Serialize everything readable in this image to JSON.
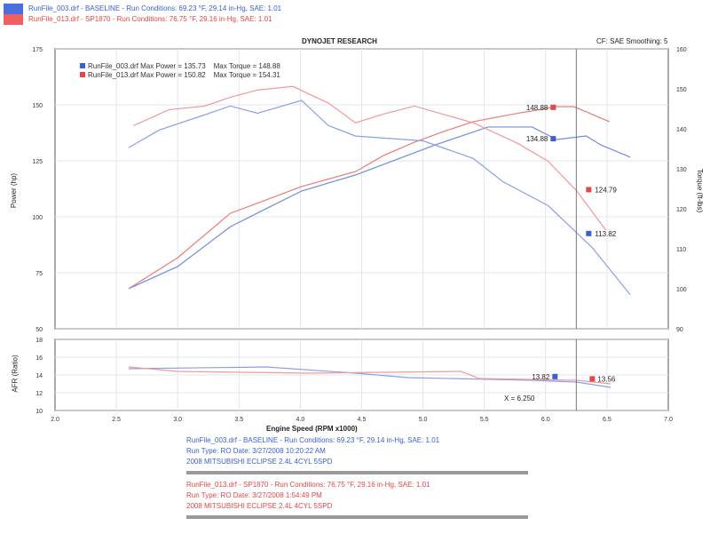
{
  "header": {
    "runs": [
      {
        "text": "RunFile_003.drf - BASELINE  -  Run Conditions: 69.23 °F, 29.14 in-Hg, SAE: 1.01",
        "color": "#3a5fd0"
      },
      {
        "text": "RunFile_013.drf - SP1870  -  Run Conditions: 76.75 °F, 29.16 in-Hg, SAE: 1.01",
        "color": "#e24848"
      }
    ],
    "title": "DYNOJET RESEARCH",
    "settings": "CF: SAE  Smoothing: 5"
  },
  "legend": [
    {
      "label": "RunFile_003.drf Max Power = 135.73",
      "torque": "Max Torque = 148.88",
      "color": "#3a5fd0"
    },
    {
      "label": "RunFile_013.drf Max Power = 150.82",
      "torque": "Max Torque = 154.31",
      "color": "#e24848"
    }
  ],
  "chart_data": [
    {
      "type": "line",
      "xlabel": "Engine Speed (RPM x1000)",
      "ylabel": "Power (hp)",
      "y2label": "Torque (ft-lbs)",
      "xlim": [
        2.0,
        7.0
      ],
      "ylim": [
        50,
        175
      ],
      "y2lim": [
        90,
        160
      ],
      "xticks": [
        "2.0",
        "2.5",
        "3.0",
        "3.5",
        "4.0",
        "4.5",
        "5.0",
        "5.5",
        "6.0",
        "6.5",
        "7.0"
      ],
      "yticks": [
        "50",
        "75",
        "100",
        "125",
        "150",
        "175"
      ],
      "y2ticks": [
        "90",
        "100",
        "110",
        "120",
        "130",
        "140",
        "150",
        "160"
      ],
      "grid": true,
      "cursor_rpm": 6.25,
      "series": [
        {
          "run": "RunFile_003.drf",
          "kind": "power",
          "axis": "left",
          "color": "#6f8ce0",
          "x": [
            2.6,
            3.0,
            3.43,
            3.72,
            4.01,
            4.45,
            5.1,
            5.53,
            5.89,
            6.09,
            6.33,
            6.45,
            6.69
          ],
          "y": [
            67.9,
            77.8,
            95.6,
            103.6,
            111.5,
            118.7,
            132.1,
            140.1,
            140.1,
            134.5,
            136.1,
            132.1,
            126.6
          ]
        },
        {
          "run": "RunFile_013.drf",
          "kind": "power",
          "axis": "left",
          "color": "#ec7a7a",
          "x": [
            2.6,
            3.0,
            3.43,
            3.72,
            4.01,
            4.45,
            4.68,
            4.93,
            5.17,
            5.41,
            5.75,
            6.09,
            6.23,
            6.52
          ],
          "y": [
            67.9,
            81.7,
            101.6,
            107.5,
            113.5,
            120.2,
            127.4,
            133.3,
            138.1,
            142.5,
            146.0,
            149.2,
            149.2,
            142.5
          ]
        },
        {
          "run": "RunFile_003.drf",
          "kind": "torque",
          "axis": "right",
          "color": "#8aa0e6",
          "x": [
            2.6,
            2.85,
            3.22,
            3.43,
            3.65,
            4.01,
            4.23,
            4.45,
            5.0,
            5.41,
            5.65,
            6.02,
            6.25,
            6.38,
            6.69
          ],
          "y": [
            135.3,
            139.7,
            143.5,
            145.7,
            143.9,
            147.1,
            140.8,
            138.2,
            137.0,
            132.6,
            126.8,
            120.8,
            114.1,
            110.3,
            98.5
          ]
        },
        {
          "run": "RunFile_013.drf",
          "kind": "torque",
          "axis": "right",
          "color": "#f09a9a",
          "x": [
            2.64,
            2.93,
            3.22,
            3.43,
            3.65,
            3.94,
            4.23,
            4.45,
            4.68,
            4.93,
            5.41,
            5.77,
            6.02,
            6.25,
            6.49
          ],
          "y": [
            140.8,
            144.8,
            145.7,
            147.9,
            149.7,
            150.6,
            146.4,
            141.5,
            143.7,
            145.7,
            141.5,
            136.4,
            131.9,
            124.6,
            114.7
          ]
        }
      ],
      "markers": [
        {
          "label": "148.88",
          "value": 148.88,
          "axis": "left",
          "color": "#e24848"
        },
        {
          "label": "134.88",
          "value": 134.88,
          "axis": "left",
          "color": "#3a5fd0"
        },
        {
          "label": "124.79",
          "value": 124.79,
          "axis": "right",
          "color": "#e24848"
        },
        {
          "label": "113.82",
          "value": 113.82,
          "axis": "right",
          "color": "#3a5fd0"
        }
      ]
    },
    {
      "type": "line",
      "ylabel": "AFR (Ratio)",
      "xlim": [
        2.0,
        7.0
      ],
      "ylim": [
        10,
        18
      ],
      "yticks": [
        "10",
        "12",
        "14",
        "16",
        "18"
      ],
      "series": [
        {
          "run": "RunFile_003.drf",
          "color": "#8aa0e6",
          "x": [
            2.6,
            3.72,
            4.45,
            4.88,
            5.89,
            6.25,
            6.53
          ],
          "y": [
            14.7,
            14.9,
            14.2,
            13.7,
            13.4,
            13.2,
            12.6
          ]
        },
        {
          "run": "RunFile_013.drf",
          "color": "#f09a9a",
          "x": [
            2.6,
            3.0,
            4.08,
            5.31,
            5.46,
            6.25,
            6.53
          ],
          "y": [
            14.9,
            14.4,
            14.2,
            14.4,
            13.6,
            13.4,
            13.0
          ]
        }
      ],
      "markers": [
        {
          "label": "13.82",
          "value": 13.82,
          "color": "#3a5fd0"
        },
        {
          "label": "13.56",
          "value": 13.56,
          "color": "#e24848"
        }
      ],
      "cursor_label": "X = 6.250"
    }
  ],
  "info": [
    {
      "color": "#3a5fd0",
      "lines": [
        "RunFile_003.drf - BASELINE  -  Run Conditions: 69.23 °F, 29.14 in-Hg, SAE: 1.01",
        "Run Type: RO  Date: 3/27/2008 10:20:22 AM",
        "2008 MITSUBISHI ECLIPSE 2.4L 4CYL 5SPD"
      ]
    },
    {
      "color": "#e24848",
      "lines": [
        "RunFile_013.drf - SP1870  -  Run Conditions: 76.75 °F, 29.16 in-Hg, SAE: 1.01",
        "Run Type: RO  Date: 3/27/2008 1:54:49 PM",
        "2008 MITSUBISHI ECLIPSE 2.4L 4CYL 5SPD"
      ]
    }
  ]
}
